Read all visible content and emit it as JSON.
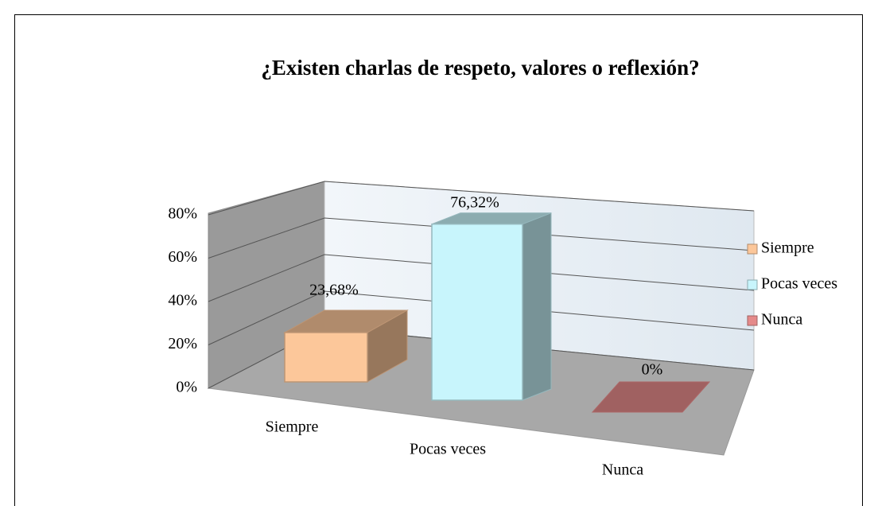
{
  "chart_data": {
    "type": "bar3d",
    "title": "¿Existen charlas de  respeto, valores o reflexión?",
    "categories": [
      "Siempre",
      "Pocas veces",
      "Nunca"
    ],
    "values": [
      23.68,
      76.32,
      0
    ],
    "value_labels": [
      "23,68%",
      "76,32%",
      "0%"
    ],
    "colors": [
      "#fcc79a",
      "#c8f5fc",
      "#e58a8a"
    ],
    "ylim": [
      0,
      80
    ],
    "yticks": [
      {
        "value": 0,
        "label": "0%"
      },
      {
        "value": 20,
        "label": "20%"
      },
      {
        "value": 40,
        "label": "40%"
      },
      {
        "value": 60,
        "label": "60%"
      },
      {
        "value": 80,
        "label": "80%"
      }
    ],
    "grid": true,
    "legend": "right"
  }
}
